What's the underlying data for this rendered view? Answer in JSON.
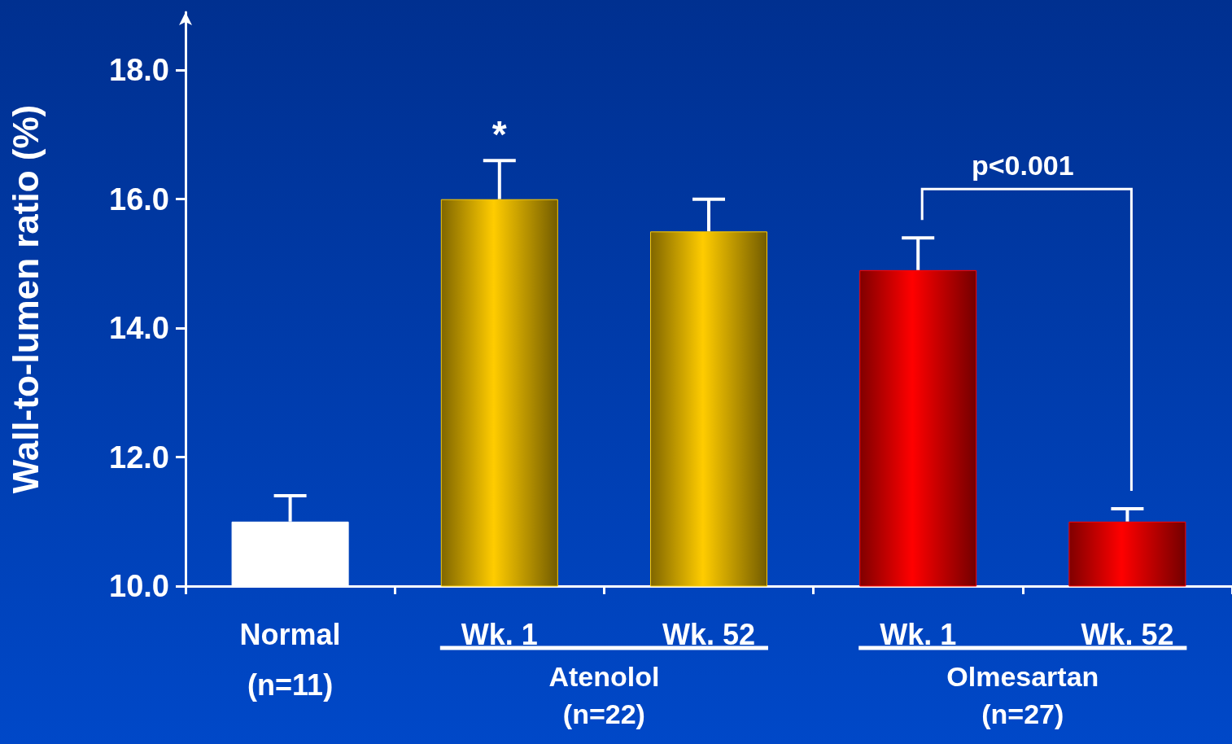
{
  "chart_data": {
    "type": "bar",
    "ylabel": "Wall-to-lumen ratio (%)",
    "categories": [
      "Normal\n(n=11)",
      "Wk. 1",
      "Wk. 52",
      "Wk. 1",
      "Wk. 52"
    ],
    "values": [
      11.0,
      16.0,
      15.5,
      14.9,
      11.0
    ],
    "errors": [
      0.4,
      0.6,
      0.5,
      0.5,
      0.2
    ],
    "colors": [
      "#ffffff",
      "#ffcc00",
      "#ffcc00",
      "#ff0000",
      "#ff0000"
    ],
    "ylim": [
      10,
      18.9
    ],
    "yticks": [
      {
        "value": 10,
        "label": "10.0"
      },
      {
        "value": 12,
        "label": "12.0"
      },
      {
        "value": 14,
        "label": "14.0"
      },
      {
        "value": 16,
        "label": "16.0"
      },
      {
        "value": 18,
        "label": "18.0"
      }
    ],
    "grid": false,
    "annotations": [
      "*",
      "p<0.001",
      "Atenolol\n(n=22)",
      "Olmesartan\n(n=27)"
    ]
  }
}
